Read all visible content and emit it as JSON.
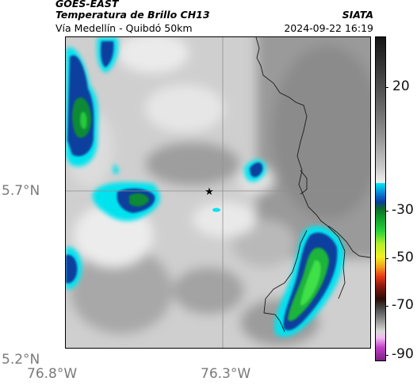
{
  "header": {
    "satellite": "GOES-EAST",
    "product": "Temperatura de Brillo CH13",
    "region": "Vía Medellín - Quibdó 50km",
    "org": "SIATA",
    "datetime": "2024-09-22 16:19"
  },
  "map": {
    "lat_labels": [
      "5.7°N",
      "5.2°N"
    ],
    "lon_labels": [
      "76.8°W",
      "76.3°W"
    ],
    "marker": "star-marker"
  },
  "colorbar": {
    "ticks": [
      "20",
      "-30",
      "-50",
      "-70",
      "-90"
    ]
  },
  "colors": {
    "cold_cyan": "#00e7f2",
    "cold_blue": "#0a3f9e",
    "cold_green": "#15b32c",
    "warm_gray": "#8a8a8a"
  }
}
